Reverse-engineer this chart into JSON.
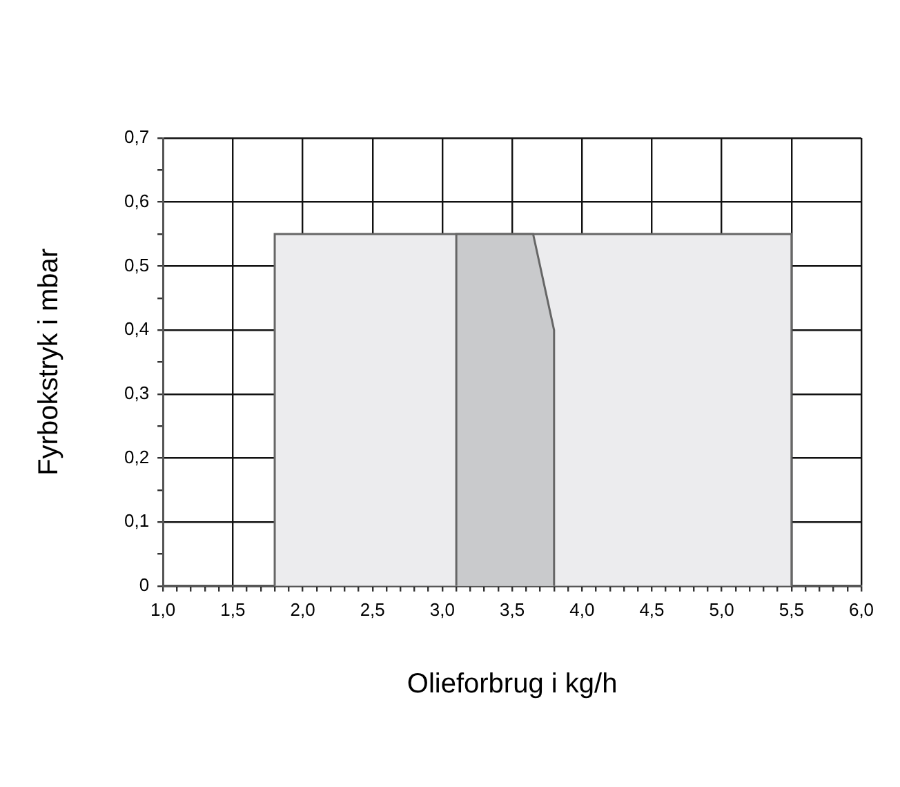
{
  "chart_data": {
    "type": "area",
    "xlabel": "Olieforbrug i kg/h",
    "ylabel": "Fyrbokstryk i mbar",
    "xlim": [
      1.0,
      6.0
    ],
    "ylim": [
      0,
      0.7
    ],
    "xticks": [
      {
        "value": 1.0,
        "label": "1,0"
      },
      {
        "value": 1.1,
        "label": null
      },
      {
        "value": 1.2,
        "label": null
      },
      {
        "value": 1.3,
        "label": null
      },
      {
        "value": 1.4,
        "label": null
      },
      {
        "value": 1.5,
        "label": "1,5"
      },
      {
        "value": 1.6,
        "label": null
      },
      {
        "value": 1.7,
        "label": null
      },
      {
        "value": 1.8,
        "label": null
      },
      {
        "value": 1.9,
        "label": null
      },
      {
        "value": 2.0,
        "label": "2,0"
      },
      {
        "value": 2.1,
        "label": null
      },
      {
        "value": 2.2,
        "label": null
      },
      {
        "value": 2.3,
        "label": null
      },
      {
        "value": 2.4,
        "label": null
      },
      {
        "value": 2.5,
        "label": "2,5"
      },
      {
        "value": 2.6,
        "label": null
      },
      {
        "value": 2.7,
        "label": null
      },
      {
        "value": 2.8,
        "label": null
      },
      {
        "value": 2.9,
        "label": null
      },
      {
        "value": 3.0,
        "label": "3,0"
      },
      {
        "value": 3.1,
        "label": null
      },
      {
        "value": 3.2,
        "label": null
      },
      {
        "value": 3.3,
        "label": null
      },
      {
        "value": 3.4,
        "label": null
      },
      {
        "value": 3.5,
        "label": "3,5"
      },
      {
        "value": 3.6,
        "label": null
      },
      {
        "value": 3.7,
        "label": null
      },
      {
        "value": 3.8,
        "label": null
      },
      {
        "value": 3.9,
        "label": null
      },
      {
        "value": 4.0,
        "label": "4,0"
      },
      {
        "value": 4.1,
        "label": null
      },
      {
        "value": 4.2,
        "label": null
      },
      {
        "value": 4.3,
        "label": null
      },
      {
        "value": 4.4,
        "label": null
      },
      {
        "value": 4.5,
        "label": "4,5"
      },
      {
        "value": 4.6,
        "label": null
      },
      {
        "value": 4.7,
        "label": null
      },
      {
        "value": 4.8,
        "label": null
      },
      {
        "value": 4.9,
        "label": null
      },
      {
        "value": 5.0,
        "label": "5,0"
      },
      {
        "value": 5.1,
        "label": null
      },
      {
        "value": 5.2,
        "label": null
      },
      {
        "value": 5.3,
        "label": null
      },
      {
        "value": 5.4,
        "label": null
      },
      {
        "value": 5.5,
        "label": "5,5"
      },
      {
        "value": 5.6,
        "label": null
      },
      {
        "value": 5.7,
        "label": null
      },
      {
        "value": 5.8,
        "label": null
      },
      {
        "value": 5.9,
        "label": null
      },
      {
        "value": 6.0,
        "label": "6,0"
      }
    ],
    "yticks": [
      0,
      {
        "value": 0.05,
        "label": null
      },
      {
        "value": 0.1,
        "label": "0,1"
      },
      {
        "value": 0.15,
        "label": null
      },
      {
        "value": 0.2,
        "label": "0,2"
      },
      {
        "value": 0.25,
        "label": null
      },
      {
        "value": 0.3,
        "label": "0,3"
      },
      {
        "value": 0.35,
        "label": null
      },
      {
        "value": 0.4,
        "label": "0,4"
      },
      {
        "value": 0.45,
        "label": null
      },
      {
        "value": 0.5,
        "label": "0,5"
      },
      {
        "value": 0.55,
        "label": null
      },
      {
        "value": 0.6,
        "label": "0,6"
      },
      {
        "value": 0.65,
        "label": null
      },
      {
        "value": 0.7,
        "label": "0,7"
      }
    ],
    "grid": true,
    "series": [
      {
        "color": "#ececee",
        "x": [
          1.8,
          1.8,
          5.5,
          5.5
        ],
        "values": [
          0,
          0.55,
          0.55,
          0
        ]
      },
      {
        "color": "#c9cacc",
        "x": [
          3.1,
          3.1,
          3.65,
          3.8,
          3.8
        ],
        "values": [
          0,
          0.55,
          0.55,
          0.4,
          0
        ]
      }
    ]
  }
}
